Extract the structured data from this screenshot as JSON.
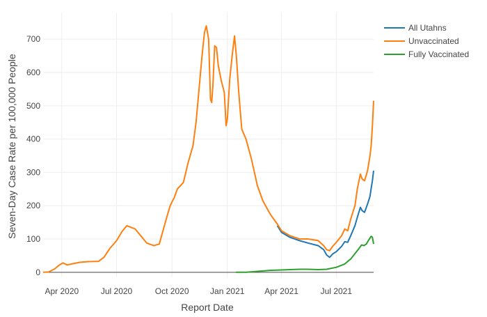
{
  "chart_data": {
    "type": "line",
    "title": "",
    "xlabel": "Report Date",
    "ylabel": "Seven-Day Case Rate per 100,000 People",
    "x_ticks": [
      "Apr 2020",
      "Jul 2020",
      "Oct 2020",
      "Jan 2021",
      "Apr 2021",
      "Jul 2021"
    ],
    "x_tick_dates": [
      "2020-04-01",
      "2020-07-01",
      "2020-10-01",
      "2021-01-01",
      "2021-04-01",
      "2021-07-01"
    ],
    "xlim": [
      "2020-03-01",
      "2021-09-01"
    ],
    "y_ticks": [
      0,
      100,
      200,
      300,
      400,
      500,
      600,
      700
    ],
    "ylim": [
      -15,
      780
    ],
    "grid": true,
    "legend_position": "top-right",
    "colors": {
      "all": "#1f77b4",
      "unvacc": "#ff7f0e",
      "vacc": "#2ca02c",
      "grid": "#eeeeee",
      "zeroline": "#444444"
    },
    "series": [
      {
        "name": "All Utahns",
        "color": "#1f77b4",
        "points": [
          [
            "2021-03-25",
            140
          ],
          [
            "2021-04-01",
            120
          ],
          [
            "2021-04-15",
            105
          ],
          [
            "2021-05-01",
            95
          ],
          [
            "2021-05-15",
            88
          ],
          [
            "2021-06-01",
            80
          ],
          [
            "2021-06-10",
            68
          ],
          [
            "2021-06-15",
            52
          ],
          [
            "2021-06-20",
            45
          ],
          [
            "2021-06-25",
            55
          ],
          [
            "2021-07-01",
            62
          ],
          [
            "2021-07-10",
            78
          ],
          [
            "2021-07-15",
            92
          ],
          [
            "2021-07-20",
            90
          ],
          [
            "2021-07-25",
            110
          ],
          [
            "2021-08-01",
            140
          ],
          [
            "2021-08-05",
            165
          ],
          [
            "2021-08-10",
            195
          ],
          [
            "2021-08-13",
            185
          ],
          [
            "2021-08-17",
            180
          ],
          [
            "2021-08-22",
            205
          ],
          [
            "2021-08-26",
            228
          ],
          [
            "2021-08-28",
            252
          ],
          [
            "2021-08-30",
            275
          ],
          [
            "2021-09-01",
            305
          ]
        ]
      },
      {
        "name": "Unvaccinated",
        "color": "#ff7f0e",
        "points": [
          [
            "2020-03-01",
            0
          ],
          [
            "2020-03-10",
            1
          ],
          [
            "2020-03-20",
            10
          ],
          [
            "2020-03-28",
            22
          ],
          [
            "2020-04-03",
            28
          ],
          [
            "2020-04-10",
            22
          ],
          [
            "2020-04-20",
            26
          ],
          [
            "2020-05-01",
            30
          ],
          [
            "2020-05-15",
            32
          ],
          [
            "2020-06-01",
            33
          ],
          [
            "2020-06-10",
            45
          ],
          [
            "2020-06-20",
            72
          ],
          [
            "2020-07-01",
            95
          ],
          [
            "2020-07-10",
            122
          ],
          [
            "2020-07-18",
            140
          ],
          [
            "2020-07-25",
            135
          ],
          [
            "2020-08-01",
            130
          ],
          [
            "2020-08-10",
            110
          ],
          [
            "2020-08-20",
            88
          ],
          [
            "2020-09-01",
            80
          ],
          [
            "2020-09-10",
            85
          ],
          [
            "2020-09-20",
            150
          ],
          [
            "2020-09-28",
            200
          ],
          [
            "2020-10-05",
            225
          ],
          [
            "2020-10-10",
            250
          ],
          [
            "2020-10-20",
            270
          ],
          [
            "2020-10-28",
            330
          ],
          [
            "2020-11-05",
            380
          ],
          [
            "2020-11-10",
            450
          ],
          [
            "2020-11-15",
            550
          ],
          [
            "2020-11-20",
            650
          ],
          [
            "2020-11-24",
            720
          ],
          [
            "2020-11-27",
            740
          ],
          [
            "2020-12-01",
            700
          ],
          [
            "2020-12-04",
            520
          ],
          [
            "2020-12-06",
            510
          ],
          [
            "2020-12-08",
            560
          ],
          [
            "2020-12-11",
            680
          ],
          [
            "2020-12-14",
            675
          ],
          [
            "2020-12-17",
            620
          ],
          [
            "2020-12-22",
            575
          ],
          [
            "2020-12-27",
            540
          ],
          [
            "2020-12-30",
            440
          ],
          [
            "2021-01-01",
            460
          ],
          [
            "2021-01-05",
            580
          ],
          [
            "2021-01-09",
            650
          ],
          [
            "2021-01-13",
            710
          ],
          [
            "2021-01-16",
            650
          ],
          [
            "2021-01-20",
            540
          ],
          [
            "2021-01-25",
            430
          ],
          [
            "2021-02-01",
            400
          ],
          [
            "2021-02-10",
            340
          ],
          [
            "2021-02-20",
            260
          ],
          [
            "2021-03-01",
            215
          ],
          [
            "2021-03-10",
            185
          ],
          [
            "2021-03-15",
            170
          ],
          [
            "2021-03-25",
            145
          ],
          [
            "2021-04-01",
            125
          ],
          [
            "2021-04-15",
            110
          ],
          [
            "2021-05-01",
            100
          ],
          [
            "2021-05-15",
            100
          ],
          [
            "2021-06-01",
            95
          ],
          [
            "2021-06-10",
            80
          ],
          [
            "2021-06-15",
            68
          ],
          [
            "2021-06-20",
            65
          ],
          [
            "2021-06-25",
            78
          ],
          [
            "2021-07-01",
            90
          ],
          [
            "2021-07-10",
            110
          ],
          [
            "2021-07-15",
            130
          ],
          [
            "2021-07-20",
            125
          ],
          [
            "2021-07-25",
            160
          ],
          [
            "2021-08-01",
            200
          ],
          [
            "2021-08-05",
            250
          ],
          [
            "2021-08-10",
            295
          ],
          [
            "2021-08-13",
            280
          ],
          [
            "2021-08-17",
            275
          ],
          [
            "2021-08-22",
            305
          ],
          [
            "2021-08-26",
            350
          ],
          [
            "2021-08-28",
            380
          ],
          [
            "2021-08-30",
            440
          ],
          [
            "2021-09-01",
            515
          ]
        ]
      },
      {
        "name": "Fully Vaccinated",
        "color": "#2ca02c",
        "points": [
          [
            "2021-01-15",
            0
          ],
          [
            "2021-02-01",
            0
          ],
          [
            "2021-02-15",
            2
          ],
          [
            "2021-03-01",
            4
          ],
          [
            "2021-03-15",
            6
          ],
          [
            "2021-04-01",
            7
          ],
          [
            "2021-04-15",
            8
          ],
          [
            "2021-05-01",
            9
          ],
          [
            "2021-05-15",
            9
          ],
          [
            "2021-06-01",
            8
          ],
          [
            "2021-06-15",
            9
          ],
          [
            "2021-07-01",
            15
          ],
          [
            "2021-07-15",
            25
          ],
          [
            "2021-07-25",
            40
          ],
          [
            "2021-08-05",
            65
          ],
          [
            "2021-08-12",
            82
          ],
          [
            "2021-08-16",
            80
          ],
          [
            "2021-08-20",
            85
          ],
          [
            "2021-08-25",
            100
          ],
          [
            "2021-08-28",
            108
          ],
          [
            "2021-08-30",
            105
          ],
          [
            "2021-09-01",
            85
          ]
        ]
      }
    ]
  }
}
